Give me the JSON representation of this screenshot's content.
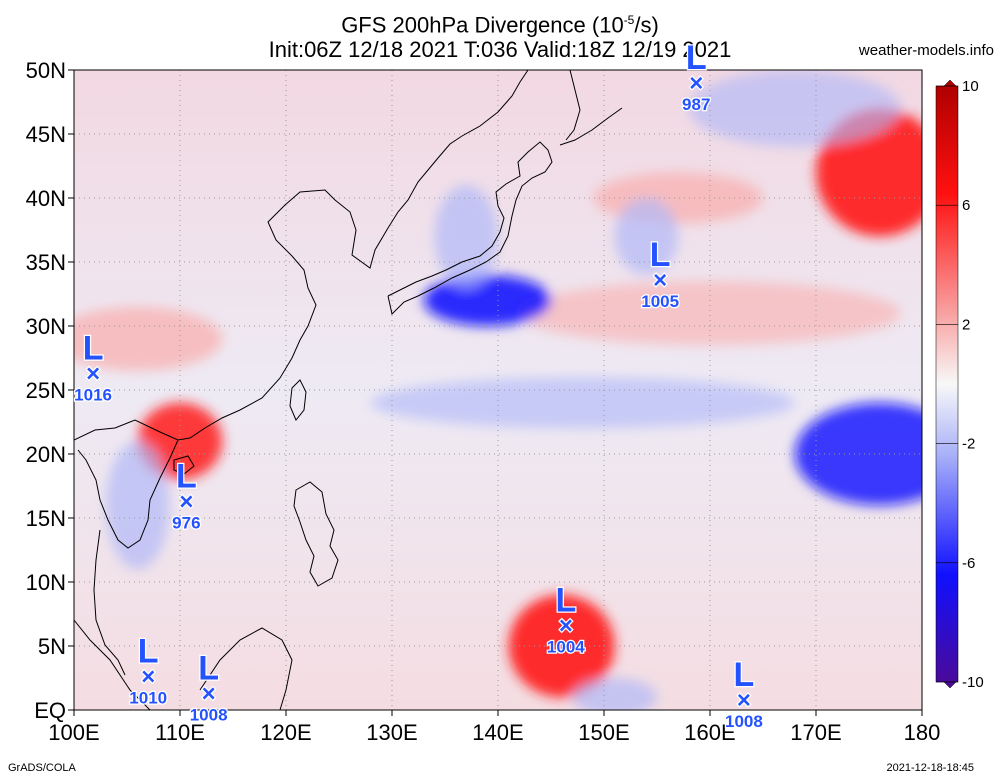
{
  "title": {
    "line1": "GFS 200hPa Divergence (10",
    "exp": "-5",
    "unit": "/s)",
    "line2": "Init:06Z 12/18 2021 T:036 Valid:18Z 12/19 2021"
  },
  "source": "weather-models.info",
  "footer": {
    "left": "GrADS/COLA",
    "right": "2021-12-18-18:45"
  },
  "map": {
    "lat_labels": [
      "50N",
      "45N",
      "40N",
      "35N",
      "30N",
      "25N",
      "20N",
      "15N",
      "10N",
      "5N",
      "EQ"
    ],
    "lat_values": [
      50,
      45,
      40,
      35,
      30,
      25,
      20,
      15,
      10,
      5,
      0
    ],
    "lon_labels": [
      "100E",
      "110E",
      "120E",
      "130E",
      "140E",
      "150E",
      "160E",
      "170E",
      "180"
    ],
    "lon_values": [
      100,
      110,
      120,
      130,
      140,
      150,
      160,
      170,
      180
    ],
    "range": {
      "lon": [
        100,
        180
      ],
      "lat": [
        0,
        50
      ]
    }
  },
  "colorbar": {
    "labels": [
      "10",
      "6",
      "2",
      "-2",
      "-6",
      "-10"
    ],
    "values": [
      10,
      6,
      2,
      -2,
      -6,
      -10
    ],
    "colors": {
      "max": "#b00000",
      "pos": "#ff2020",
      "light_pos": "#f8b0b0",
      "zero": "#f5f5f5",
      "light_neg": "#b0b8f8",
      "neg": "#1010ff",
      "min": "#4a0a9a"
    }
  },
  "lows": [
    {
      "label": "L",
      "pressure": "987",
      "lon": 158.7,
      "lat": 49.0
    },
    {
      "label": "L",
      "pressure": "1005",
      "lon": 155.3,
      "lat": 33.6
    },
    {
      "label": "L",
      "pressure": "1016",
      "lon": 101.8,
      "lat": 26.3
    },
    {
      "label": "L",
      "pressure": "976",
      "lon": 110.6,
      "lat": 16.3
    },
    {
      "label": "L",
      "pressure": "1004",
      "lon": 146.4,
      "lat": 6.6
    },
    {
      "label": "L",
      "pressure": "1010",
      "lon": 107.0,
      "lat": 2.6
    },
    {
      "label": "L",
      "pressure": "1008",
      "lon": 112.7,
      "lat": 1.3
    },
    {
      "label": "L",
      "pressure": "1008",
      "lon": 163.2,
      "lat": 0.8
    }
  ],
  "features": [
    {
      "name": "divergence-max-yellow-sea",
      "type": "pos",
      "lon": 106,
      "lat": 29,
      "rx": 8,
      "ry": 2.5,
      "value": 5
    },
    {
      "name": "divergence-max-south-china",
      "type": "pos",
      "lon": 110,
      "lat": 21,
      "rx": 4,
      "ry": 3,
      "value": 7
    },
    {
      "name": "divergence-max-dateline-north",
      "type": "pos",
      "lon": 176,
      "lat": 42,
      "rx": 6,
      "ry": 5,
      "value": 8
    },
    {
      "name": "divergence-max-central-pacific",
      "type": "pos",
      "lon": 157,
      "lat": 40,
      "rx": 8,
      "ry": 2,
      "value": 5
    },
    {
      "name": "divergence-band-30n",
      "type": "pos",
      "lon": 160,
      "lat": 31,
      "rx": 18,
      "ry": 2.5,
      "value": 3
    },
    {
      "name": "divergence-max-tropical-4n",
      "type": "pos",
      "lon": 146,
      "lat": 5,
      "rx": 5,
      "ry": 4,
      "value": 8
    },
    {
      "name": "convergence-min-japan-south",
      "type": "neg",
      "lon": 139,
      "lat": 32,
      "rx": 6,
      "ry": 2,
      "value": -7
    },
    {
      "name": "convergence-japan",
      "type": "neg",
      "lon": 137,
      "lat": 37,
      "rx": 3,
      "ry": 4,
      "value": -4
    },
    {
      "name": "convergence-dateline-20n",
      "type": "neg",
      "lon": 176,
      "lat": 20,
      "rx": 8,
      "ry": 4,
      "value": -6
    },
    {
      "name": "convergence-band-24n",
      "type": "neg",
      "lon": 148,
      "lat": 24,
      "rx": 20,
      "ry": 2,
      "value": -3
    },
    {
      "name": "convergence-southeast-asia",
      "type": "neg",
      "lon": 106,
      "lat": 16,
      "rx": 3,
      "ry": 5,
      "value": -4
    },
    {
      "name": "convergence-central-38n",
      "type": "neg",
      "lon": 154,
      "lat": 37,
      "rx": 3,
      "ry": 3,
      "value": -4
    },
    {
      "name": "convergence-north-pacific-50n",
      "type": "neg",
      "lon": 168,
      "lat": 47,
      "rx": 10,
      "ry": 3,
      "value": -3
    },
    {
      "name": "convergence-eq-150e",
      "type": "neg",
      "lon": 151,
      "lat": 1,
      "rx": 4,
      "ry": 1.5,
      "value": -4
    }
  ]
}
